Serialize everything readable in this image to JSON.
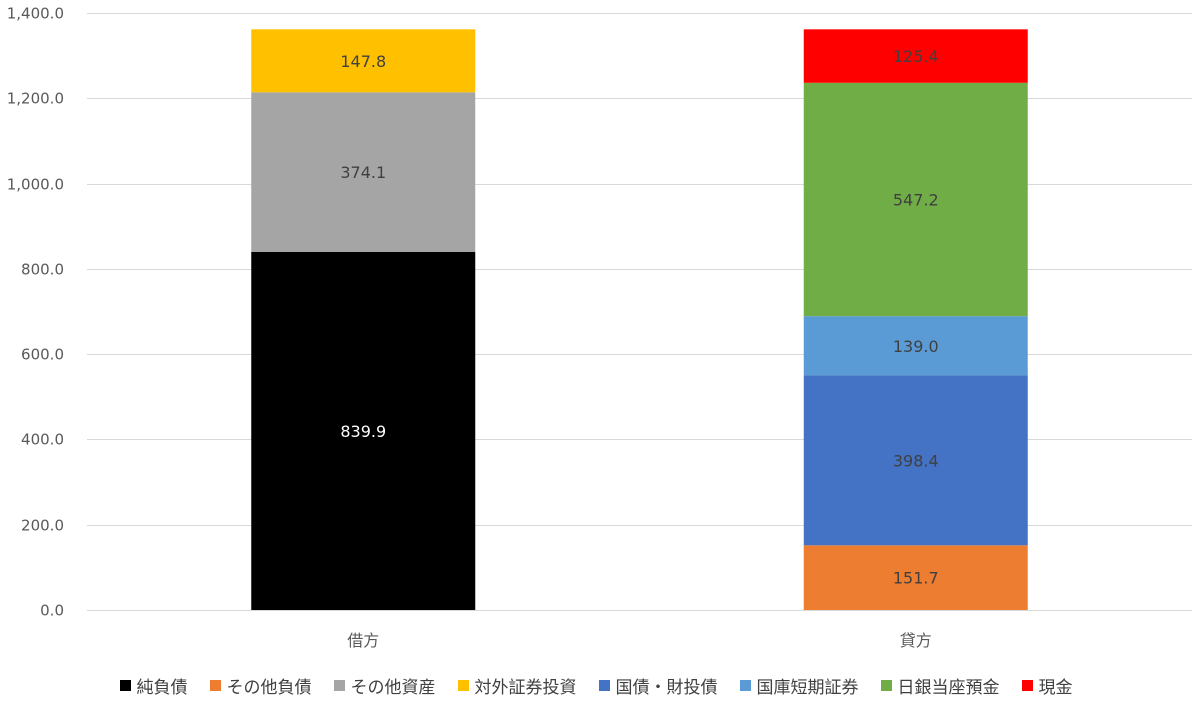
{
  "chart_data": {
    "type": "bar",
    "stacked": true,
    "categories": [
      "借方",
      "貸方"
    ],
    "ylim": [
      0,
      1400
    ],
    "yticks": [
      "0.0",
      "200.0",
      "400.0",
      "600.0",
      "800.0",
      "1,000.0",
      "1,200.0",
      "1,400.0"
    ],
    "ytick_values": [
      0,
      200,
      400,
      600,
      800,
      1000,
      1200,
      1400
    ],
    "grid": true,
    "legend_position": "bottom",
    "series": [
      {
        "name": "純負債",
        "color": "#000000",
        "label_color": "#ffffff",
        "values": [
          839.9,
          null
        ],
        "labels": [
          "839.9",
          ""
        ]
      },
      {
        "name": "その他負債",
        "color": "#ED7D31",
        "label_color": "#404040",
        "values": [
          null,
          151.7
        ],
        "labels": [
          "",
          "151.7"
        ]
      },
      {
        "name": "その他資産",
        "color": "#A5A5A5",
        "label_color": "#404040",
        "values": [
          374.1,
          null
        ],
        "labels": [
          "374.1",
          ""
        ]
      },
      {
        "name": "対外証券投資",
        "color": "#FFC000",
        "label_color": "#404040",
        "values": [
          147.8,
          null
        ],
        "labels": [
          "147.8",
          ""
        ]
      },
      {
        "name": "国債・財投債",
        "color": "#4472C4",
        "label_color": "#404040",
        "values": [
          null,
          398.4
        ],
        "labels": [
          "",
          "398.4"
        ]
      },
      {
        "name": "国庫短期証券",
        "color": "#5B9BD5",
        "label_color": "#404040",
        "values": [
          null,
          139.0
        ],
        "labels": [
          "",
          "139.0"
        ]
      },
      {
        "name": "日銀当座預金",
        "color": "#70AD47",
        "label_color": "#404040",
        "values": [
          null,
          547.2
        ],
        "labels": [
          "",
          "547.2"
        ]
      },
      {
        "name": "現金",
        "color": "#FF0000",
        "label_color": "#404040",
        "values": [
          null,
          125.4
        ],
        "labels": [
          "",
          "125.4"
        ]
      }
    ]
  }
}
